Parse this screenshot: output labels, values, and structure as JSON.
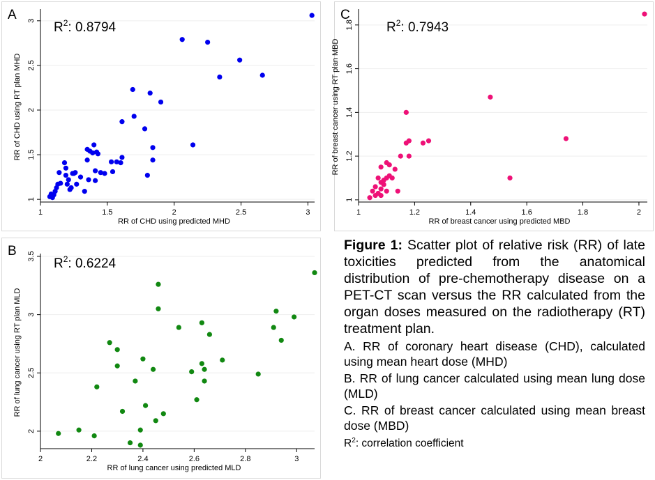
{
  "chart_data": [
    {
      "id": "A",
      "type": "scatter",
      "panel_label": "A",
      "r2_prefix": "R",
      "r2_sup": "2",
      "r2_text": ": 0.8794",
      "xlabel": "RR of CHD using predicted MHD",
      "ylabel": "RR of CHD using RT plan MHD",
      "xlim": [
        1,
        3.05
      ],
      "ylim": [
        0.97,
        3.1
      ],
      "xticks": [
        1,
        1.5,
        2,
        2.5,
        3
      ],
      "yticks": [
        1,
        1.5,
        2,
        2.5,
        3
      ],
      "grid": true,
      "color": "#0000ee",
      "points": [
        [
          1.07,
          1.03
        ],
        [
          1.08,
          1.06
        ],
        [
          1.09,
          1.02
        ],
        [
          1.1,
          1.05
        ],
        [
          1.11,
          1.09
        ],
        [
          1.12,
          1.13
        ],
        [
          1.13,
          1.17
        ],
        [
          1.14,
          1.3
        ],
        [
          1.15,
          1.18
        ],
        [
          1.18,
          1.41
        ],
        [
          1.19,
          1.35
        ],
        [
          1.19,
          1.27
        ],
        [
          1.2,
          1.17
        ],
        [
          1.21,
          1.22
        ],
        [
          1.22,
          1.11
        ],
        [
          1.23,
          1.13
        ],
        [
          1.24,
          1.29
        ],
        [
          1.25,
          1.29
        ],
        [
          1.26,
          1.3
        ],
        [
          1.27,
          1.17
        ],
        [
          1.3,
          1.25
        ],
        [
          1.33,
          1.09
        ],
        [
          1.35,
          1.56
        ],
        [
          1.35,
          1.44
        ],
        [
          1.36,
          1.22
        ],
        [
          1.37,
          1.54
        ],
        [
          1.39,
          1.52
        ],
        [
          1.4,
          1.61
        ],
        [
          1.41,
          1.32
        ],
        [
          1.41,
          1.21
        ],
        [
          1.42,
          1.53
        ],
        [
          1.43,
          1.51
        ],
        [
          1.45,
          1.3
        ],
        [
          1.48,
          1.29
        ],
        [
          1.53,
          1.42
        ],
        [
          1.54,
          1.31
        ],
        [
          1.57,
          1.42
        ],
        [
          1.6,
          1.41
        ],
        [
          1.61,
          1.87
        ],
        [
          1.61,
          1.47
        ],
        [
          1.69,
          2.23
        ],
        [
          1.7,
          1.93
        ],
        [
          1.78,
          1.79
        ],
        [
          1.8,
          1.27
        ],
        [
          1.82,
          2.19
        ],
        [
          1.84,
          1.44
        ],
        [
          1.84,
          1.58
        ],
        [
          1.9,
          2.09
        ],
        [
          2.06,
          2.79
        ],
        [
          2.14,
          1.61
        ],
        [
          2.25,
          2.76
        ],
        [
          2.34,
          2.37
        ],
        [
          2.49,
          2.56
        ],
        [
          2.66,
          2.39
        ],
        [
          3.03,
          3.06
        ]
      ]
    },
    {
      "id": "C",
      "type": "scatter",
      "panel_label": "C",
      "r2_prefix": "R",
      "r2_sup": "2",
      "r2_text": ": 0.7943",
      "xlabel": "RR of breast cancer using predicted MBD",
      "ylabel": "RR of breast cancer using RT plan MBD",
      "xlim": [
        1,
        2.03
      ],
      "ylim": [
        0.99,
        1.86
      ],
      "xticks": [
        1,
        1.2,
        1.4,
        1.6,
        1.8,
        2
      ],
      "yticks": [
        1,
        1.2,
        1.4,
        1.6,
        1.8
      ],
      "grid": true,
      "color": "#ee1177",
      "points": [
        [
          1.04,
          1.01
        ],
        [
          1.05,
          1.04
        ],
        [
          1.06,
          1.02
        ],
        [
          1.06,
          1.06
        ],
        [
          1.07,
          1.03
        ],
        [
          1.07,
          1.1
        ],
        [
          1.08,
          1.02
        ],
        [
          1.08,
          1.05
        ],
        [
          1.08,
          1.08
        ],
        [
          1.08,
          1.15
        ],
        [
          1.09,
          1.07
        ],
        [
          1.09,
          1.09
        ],
        [
          1.1,
          1.1
        ],
        [
          1.1,
          1.17
        ],
        [
          1.1,
          1.04
        ],
        [
          1.11,
          1.11
        ],
        [
          1.11,
          1.16
        ],
        [
          1.12,
          1.1
        ],
        [
          1.13,
          1.14
        ],
        [
          1.14,
          1.04
        ],
        [
          1.15,
          1.2
        ],
        [
          1.17,
          1.4
        ],
        [
          1.17,
          1.26
        ],
        [
          1.18,
          1.27
        ],
        [
          1.18,
          1.2
        ],
        [
          1.23,
          1.26
        ],
        [
          1.25,
          1.27
        ],
        [
          1.47,
          1.47
        ],
        [
          1.54,
          1.1
        ],
        [
          1.74,
          1.28
        ],
        [
          2.02,
          1.85
        ]
      ]
    },
    {
      "id": "B",
      "type": "scatter",
      "panel_label": "B",
      "r2_prefix": "R",
      "r2_sup": "2",
      "r2_text": ": 0.6224",
      "xlabel": "RR of lung cancer using predicted MLD",
      "ylabel": "RR of lung cancer using RT plan MLD",
      "xlim": [
        2,
        3.07
      ],
      "ylim": [
        1.85,
        3.5
      ],
      "xticks": [
        2,
        2.2,
        2.4,
        2.6,
        2.8,
        3
      ],
      "yticks": [
        2,
        2.5,
        3,
        3.5
      ],
      "grid": true,
      "color": "#118811",
      "points": [
        [
          2.07,
          1.98
        ],
        [
          2.15,
          2.01
        ],
        [
          2.21,
          1.96
        ],
        [
          2.22,
          2.38
        ],
        [
          2.27,
          2.76
        ],
        [
          2.3,
          2.56
        ],
        [
          2.3,
          2.7
        ],
        [
          2.32,
          2.17
        ],
        [
          2.35,
          1.9
        ],
        [
          2.37,
          2.43
        ],
        [
          2.39,
          2.01
        ],
        [
          2.39,
          1.88
        ],
        [
          2.4,
          2.62
        ],
        [
          2.41,
          2.22
        ],
        [
          2.44,
          2.53
        ],
        [
          2.45,
          2.09
        ],
        [
          2.46,
          3.26
        ],
        [
          2.46,
          3.05
        ],
        [
          2.48,
          2.15
        ],
        [
          2.54,
          2.89
        ],
        [
          2.59,
          2.51
        ],
        [
          2.61,
          2.27
        ],
        [
          2.63,
          2.93
        ],
        [
          2.63,
          2.58
        ],
        [
          2.64,
          2.53
        ],
        [
          2.64,
          2.43
        ],
        [
          2.66,
          2.83
        ],
        [
          2.71,
          2.61
        ],
        [
          2.85,
          2.49
        ],
        [
          2.91,
          2.89
        ],
        [
          2.92,
          3.03
        ],
        [
          2.94,
          2.78
        ],
        [
          2.99,
          2.98
        ],
        [
          3.07,
          3.36
        ]
      ]
    }
  ],
  "caption": {
    "title_bold": "Figure 1:",
    "title_rest": " Scatter plot of relative risk (RR) of late toxicities predicted from the anatomical distribution of pre-chemotherapy disease on a PET-CT scan versus the RR calculated from the organ doses measured on the radiotherapy (RT) treatment plan.",
    "item_a": "A. RR of coronary heart disease (CHD), calculated using mean heart dose (MHD)",
    "item_b": "B.  RR of lung cancer calculated using mean lung dose (MLD)",
    "item_c": "C. RR of breast cancer calculated using mean breast dose (MBD)",
    "note_prefix": "R",
    "note_sup": "2",
    "note_rest": ": correlation coefficient"
  }
}
